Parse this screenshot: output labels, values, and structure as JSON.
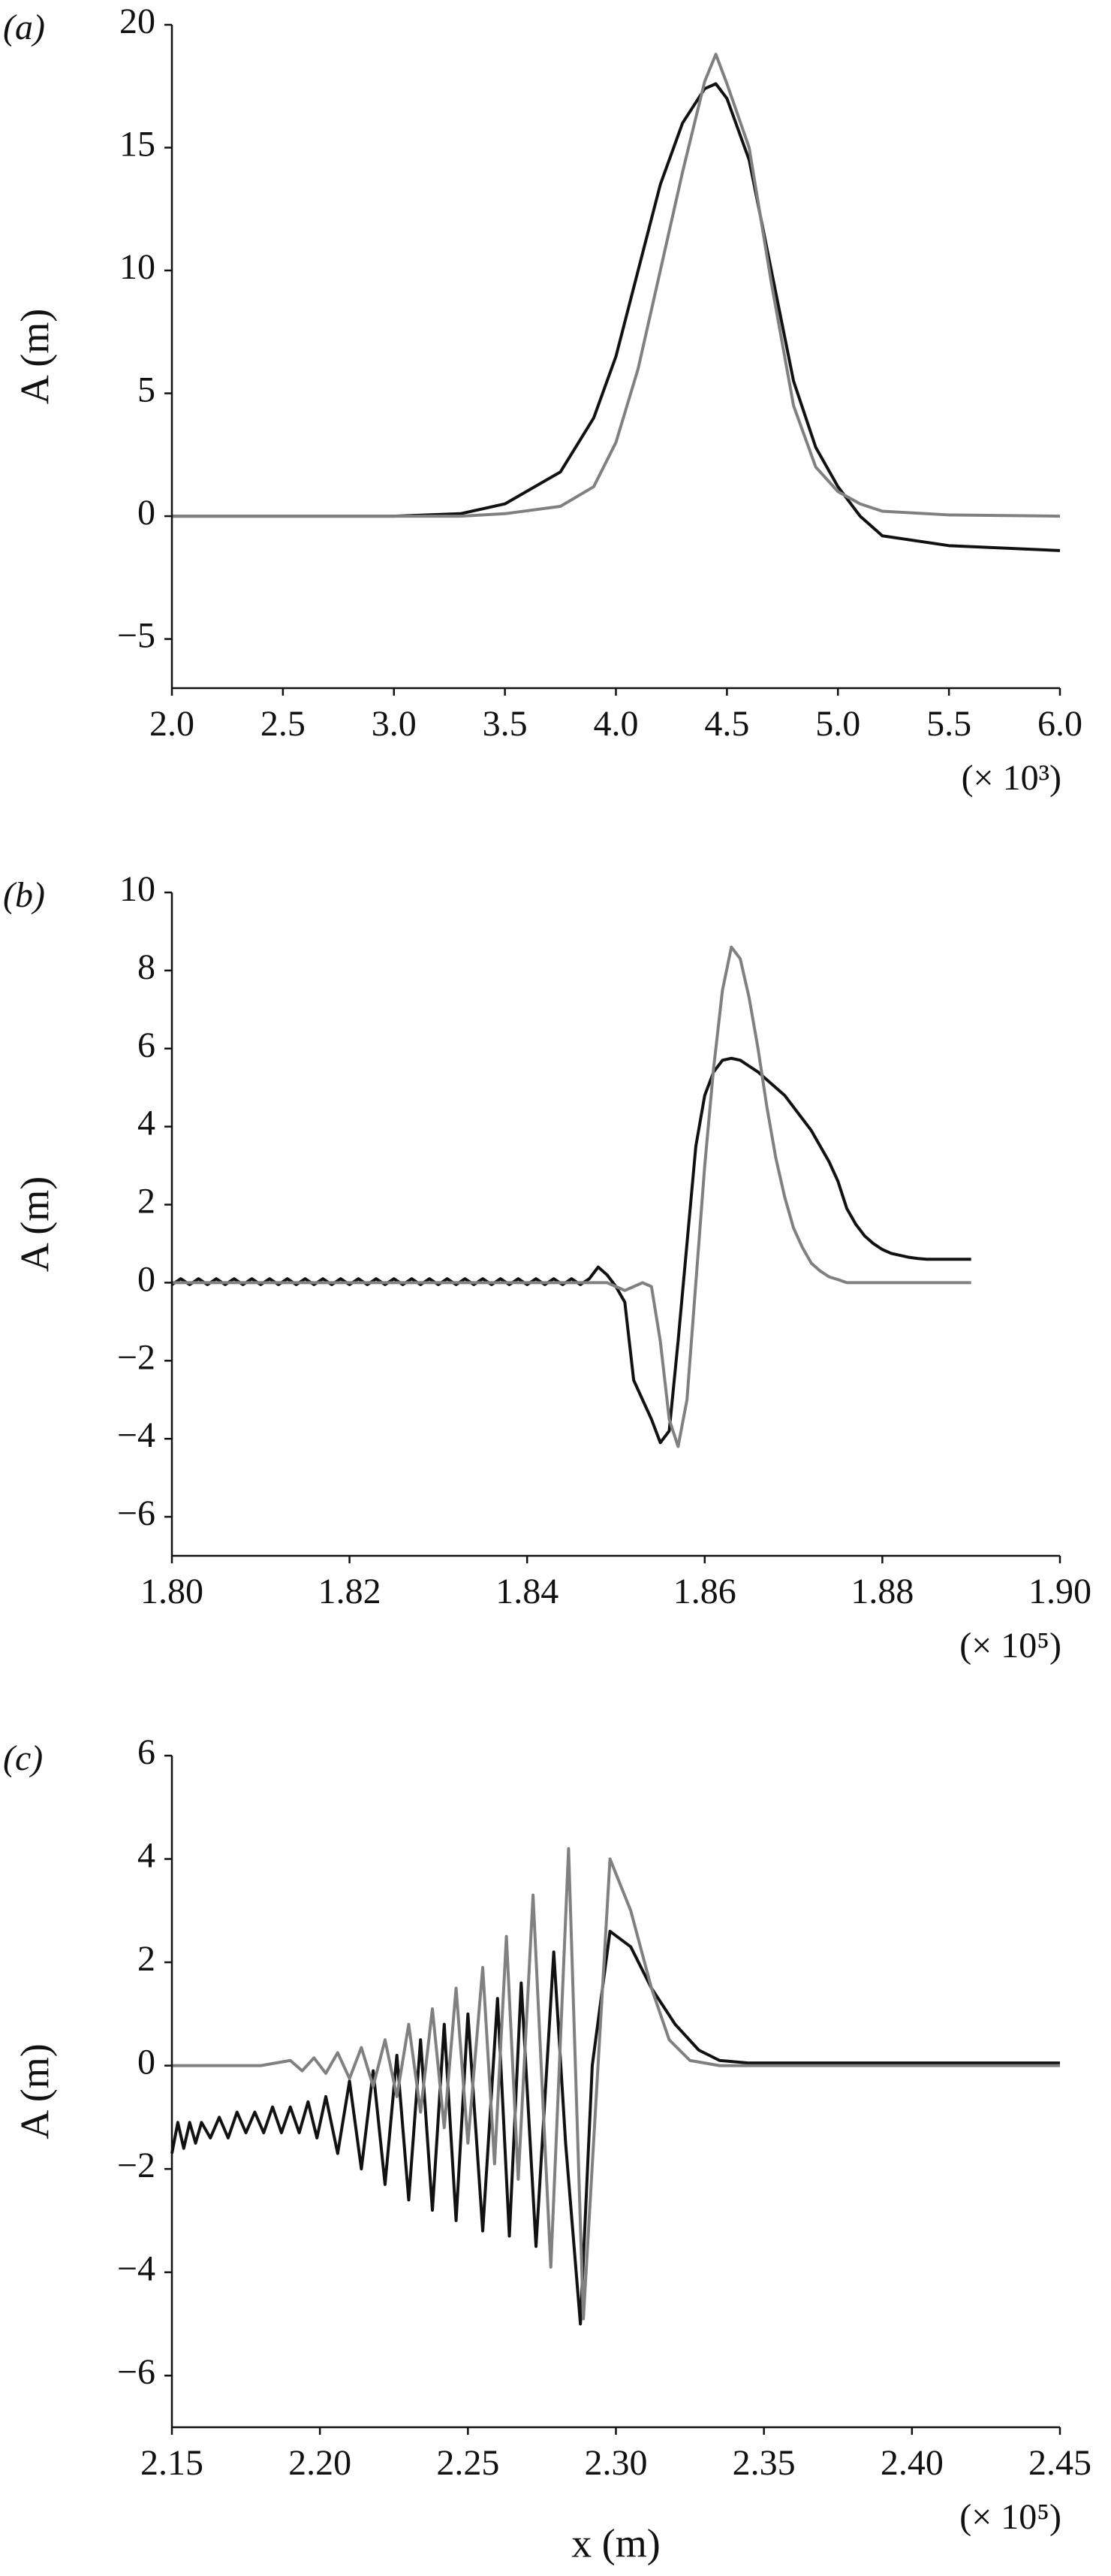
{
  "chart_data": [
    {
      "type": "line",
      "panel_label": "(a)",
      "ylabel": "A (m)",
      "x_multiplier_label": "(× 10³)",
      "xlim": [
        2.0,
        6.0
      ],
      "ylim": [
        -7,
        20
      ],
      "xticks": [
        {
          "value": 2,
          "label": "2.0"
        },
        2.5,
        {
          "value": 3,
          "label": "3.0"
        },
        3.5,
        {
          "value": 4,
          "label": "4.0"
        },
        4.5,
        {
          "value": 5,
          "label": "5.0"
        },
        5.5,
        {
          "value": 6,
          "label": "6.0"
        }
      ],
      "yticks": [
        {
          "value": -5,
          "label": "−5"
        },
        0,
        5,
        10,
        15,
        20
      ],
      "x": [
        2.0,
        2.5,
        3.0,
        3.3,
        3.5,
        3.75,
        3.9,
        4.0,
        4.1,
        4.2,
        4.3,
        4.4,
        4.45,
        4.5,
        4.6,
        4.7,
        4.8,
        4.9,
        5.0,
        5.1,
        5.2,
        5.5,
        6.0
      ],
      "series": [
        {
          "color": "#111111",
          "values": [
            0,
            0,
            0,
            0.1,
            0.5,
            1.8,
            4,
            6.5,
            10,
            13.5,
            16,
            17.4,
            17.6,
            17,
            14.5,
            10,
            5.5,
            2.8,
            1.2,
            0,
            -0.8,
            -1.2,
            -1.4
          ]
        },
        {
          "color": "#808080",
          "values": [
            0,
            0,
            0,
            0,
            0.1,
            0.4,
            1.2,
            3,
            6,
            10,
            14,
            17.7,
            18.8,
            17.6,
            15,
            9.5,
            4.5,
            2,
            1,
            0.5,
            0.2,
            0.05,
            0
          ]
        }
      ]
    },
    {
      "type": "line",
      "panel_label": "(b)",
      "ylabel": "A (m)",
      "x_multiplier_label": "(× 10⁵)",
      "xlim": [
        1.8,
        1.9
      ],
      "ylim": [
        -7,
        10
      ],
      "xticks": [
        {
          "value": 1.8,
          "label": "1.80"
        },
        1.82,
        1.84,
        1.86,
        1.88,
        {
          "value": 1.9,
          "label": "1.90"
        }
      ],
      "yticks": [
        {
          "value": -6,
          "label": "−6"
        },
        {
          "value": -4,
          "label": "−4"
        },
        {
          "value": -2,
          "label": "−2"
        },
        0,
        2,
        4,
        6,
        8,
        10
      ],
      "x": [
        1.8,
        1.801,
        1.802,
        1.803,
        1.804,
        1.805,
        1.806,
        1.807,
        1.808,
        1.809,
        1.81,
        1.811,
        1.812,
        1.813,
        1.814,
        1.815,
        1.816,
        1.817,
        1.818,
        1.819,
        1.82,
        1.821,
        1.822,
        1.823,
        1.824,
        1.825,
        1.826,
        1.827,
        1.828,
        1.829,
        1.83,
        1.831,
        1.832,
        1.833,
        1.834,
        1.835,
        1.836,
        1.837,
        1.838,
        1.839,
        1.84,
        1.841,
        1.842,
        1.843,
        1.844,
        1.845,
        1.846,
        1.847,
        1.848,
        1.849,
        1.85,
        1.851,
        1.852,
        1.853,
        1.854,
        1.855,
        1.856,
        1.857,
        1.858,
        1.859,
        1.86,
        1.861,
        1.862,
        1.863,
        1.864,
        1.865,
        1.866,
        1.867,
        1.868,
        1.869,
        1.87,
        1.871,
        1.872,
        1.873,
        1.874,
        1.875,
        1.876,
        1.877,
        1.878,
        1.879,
        1.88,
        1.881,
        1.882,
        1.883,
        1.884,
        1.885,
        1.886,
        1.887,
        1.888,
        1.889,
        1.89
      ],
      "series": [
        {
          "color": "#111111",
          "values": [
            -0.05,
            0.1,
            -0.05,
            0.1,
            -0.05,
            0.1,
            -0.05,
            0.1,
            -0.05,
            0.1,
            -0.05,
            0.1,
            -0.05,
            0.1,
            -0.05,
            0.1,
            -0.05,
            0.1,
            -0.05,
            0.1,
            -0.05,
            0.1,
            -0.05,
            0.1,
            -0.05,
            0.1,
            -0.05,
            0.1,
            -0.05,
            0.1,
            -0.05,
            0.1,
            -0.05,
            0.1,
            -0.05,
            0.1,
            -0.05,
            0.1,
            -0.05,
            0.1,
            -0.05,
            0.1,
            -0.05,
            0.1,
            -0.05,
            0.1,
            -0.05,
            0.1,
            0.4,
            0.2,
            -0.1,
            -0.5,
            -2.5,
            -3,
            -3.5,
            -4.1,
            -3.8,
            -1.5,
            1,
            3.5,
            4.8,
            5.4,
            5.7,
            5.75,
            5.7,
            5.55,
            5.4,
            5.2,
            5,
            4.8,
            4.5,
            4.2,
            3.9,
            3.5,
            3.1,
            2.6,
            1.9,
            1.5,
            1.2,
            1.0,
            0.85,
            0.75,
            0.7,
            0.65,
            0.62,
            0.6,
            0.6,
            0.6,
            0.6,
            0.6,
            0.6
          ]
        },
        {
          "color": "#808080",
          "values": [
            0,
            0,
            0,
            0,
            0,
            0,
            0,
            0,
            0,
            0,
            0,
            0,
            0,
            0,
            0,
            0,
            0,
            0,
            0,
            0,
            0,
            0,
            0,
            0,
            0,
            0,
            0,
            0,
            0,
            0,
            0,
            0,
            0,
            0,
            0,
            0,
            0,
            0,
            0,
            0,
            0,
            0,
            0,
            0,
            0,
            0,
            0,
            0,
            0,
            0,
            -0.1,
            -0.2,
            -0.1,
            0,
            -0.1,
            -1.5,
            -3.5,
            -4.2,
            -3,
            0,
            3,
            5.5,
            7.5,
            8.6,
            8.3,
            7.3,
            6,
            4.5,
            3.2,
            2.2,
            1.4,
            0.9,
            0.5,
            0.3,
            0.15,
            0.08,
            0,
            0,
            0,
            0,
            0,
            0,
            0,
            0,
            0,
            0,
            0,
            0,
            0,
            0,
            0
          ]
        }
      ]
    },
    {
      "type": "line",
      "panel_label": "(c)",
      "ylabel": "A (m)",
      "xlabel": "x (m)",
      "x_multiplier_label": "(× 10⁵)",
      "xlim": [
        2.15,
        2.45
      ],
      "ylim": [
        -7,
        6
      ],
      "xticks": [
        2.15,
        {
          "value": 2.2,
          "label": "2.20"
        },
        2.25,
        {
          "value": 2.3,
          "label": "2.30"
        },
        2.35,
        {
          "value": 2.4,
          "label": "2.40"
        },
        2.45
      ],
      "yticks": [
        {
          "value": -6,
          "label": "−6"
        },
        {
          "value": -4,
          "label": "−4"
        },
        {
          "value": -2,
          "label": "−2"
        },
        0,
        2,
        4,
        6
      ],
      "series": [
        {
          "color": "#111111",
          "x": [
            2.15,
            2.152,
            2.154,
            2.156,
            2.158,
            2.16,
            2.163,
            2.166,
            2.169,
            2.172,
            2.175,
            2.178,
            2.181,
            2.184,
            2.187,
            2.19,
            2.193,
            2.196,
            2.199,
            2.202,
            2.206,
            2.21,
            2.214,
            2.218,
            2.222,
            2.226,
            2.23,
            2.234,
            2.238,
            2.242,
            2.246,
            2.25,
            2.255,
            2.26,
            2.264,
            2.268,
            2.273,
            2.279,
            2.283,
            2.288,
            2.292,
            2.298,
            2.305,
            2.312,
            2.32,
            2.328,
            2.335,
            2.345,
            2.45
          ],
          "values": [
            -1.7,
            -1.1,
            -1.6,
            -1.1,
            -1.5,
            -1.1,
            -1.4,
            -1.0,
            -1.4,
            -0.9,
            -1.3,
            -0.9,
            -1.3,
            -0.8,
            -1.3,
            -0.8,
            -1.3,
            -0.7,
            -1.4,
            -0.6,
            -1.7,
            -0.3,
            -2.0,
            -0.1,
            -2.3,
            0.2,
            -2.6,
            0.5,
            -2.8,
            0.8,
            -3.0,
            1.0,
            -3.2,
            1.3,
            -3.3,
            1.6,
            -3.5,
            2.2,
            -1.5,
            -5.0,
            0,
            2.6,
            2.3,
            1.5,
            0.8,
            0.3,
            0.1,
            0.05,
            0.05
          ]
        },
        {
          "color": "#808080",
          "x": [
            2.15,
            2.18,
            2.19,
            2.194,
            2.198,
            2.202,
            2.206,
            2.21,
            2.214,
            2.218,
            2.222,
            2.226,
            2.23,
            2.234,
            2.238,
            2.242,
            2.246,
            2.25,
            2.255,
            2.259,
            2.263,
            2.267,
            2.272,
            2.278,
            2.284,
            2.289,
            2.298,
            2.305,
            2.312,
            2.318,
            2.325,
            2.335,
            2.45
          ],
          "values": [
            0,
            0,
            0.1,
            -0.1,
            0.15,
            -0.15,
            0.25,
            -0.25,
            0.35,
            -0.4,
            0.5,
            -0.6,
            0.8,
            -0.9,
            1.1,
            -1.2,
            1.5,
            -1.5,
            1.9,
            -1.9,
            2.5,
            -2.2,
            3.3,
            -3.9,
            4.2,
            -4.9,
            4.0,
            3.0,
            1.5,
            0.5,
            0.1,
            0,
            0
          ]
        }
      ]
    }
  ]
}
